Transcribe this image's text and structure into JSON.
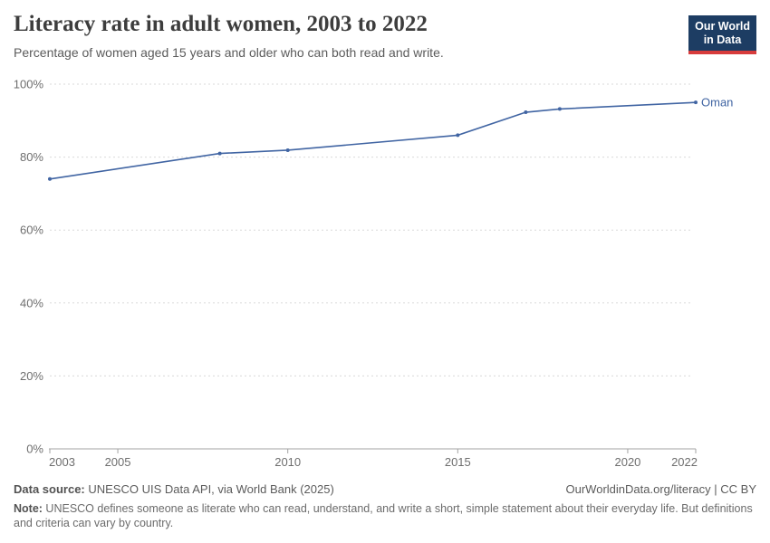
{
  "header": {
    "title": "Literacy rate in adult women, 2003 to 2022",
    "subtitle": "Percentage of women aged 15 years and older who can both read and write.",
    "logo": {
      "line1": "Our World",
      "line2": "in Data"
    }
  },
  "chart_data": {
    "type": "line",
    "title": "Literacy rate in adult women, 2003 to 2022",
    "x": [
      2003,
      2008,
      2010,
      2015,
      2017,
      2018,
      2022
    ],
    "series": [
      {
        "name": "Oman",
        "color": "#4165a3",
        "values": [
          74.0,
          81.0,
          81.9,
          86.0,
          92.3,
          93.2,
          95.0
        ]
      }
    ],
    "xlabel": "",
    "ylabel": "",
    "xlim": [
      2003,
      2022
    ],
    "ylim": [
      0,
      100
    ],
    "xticks": [
      2003,
      2005,
      2010,
      2015,
      2020,
      2022
    ],
    "yticks": [
      0,
      20,
      40,
      60,
      80,
      100
    ],
    "ytick_format": "{}%",
    "grid": "horizontal-dashed",
    "legend_position": "end-of-line-label"
  },
  "footer": {
    "source_label": "Data source:",
    "source_text": " UNESCO UIS Data API, via World Bank (2025)",
    "link_text": "OurWorldinData.org/literacy | CC BY",
    "note_label": "Note:",
    "note_text": " UNESCO defines someone as literate who can read, understand, and write a short, simple statement about their everyday life. But definitions and criteria can vary by country."
  },
  "colors": {
    "line": "#4165a3",
    "logo_bg": "#1d3d63",
    "logo_accent": "#d73c3c",
    "gridline": "#d9d9d9",
    "axis": "#a3a3a3",
    "tick_text": "#6e6e6e",
    "title_text": "#3d3d3d"
  }
}
